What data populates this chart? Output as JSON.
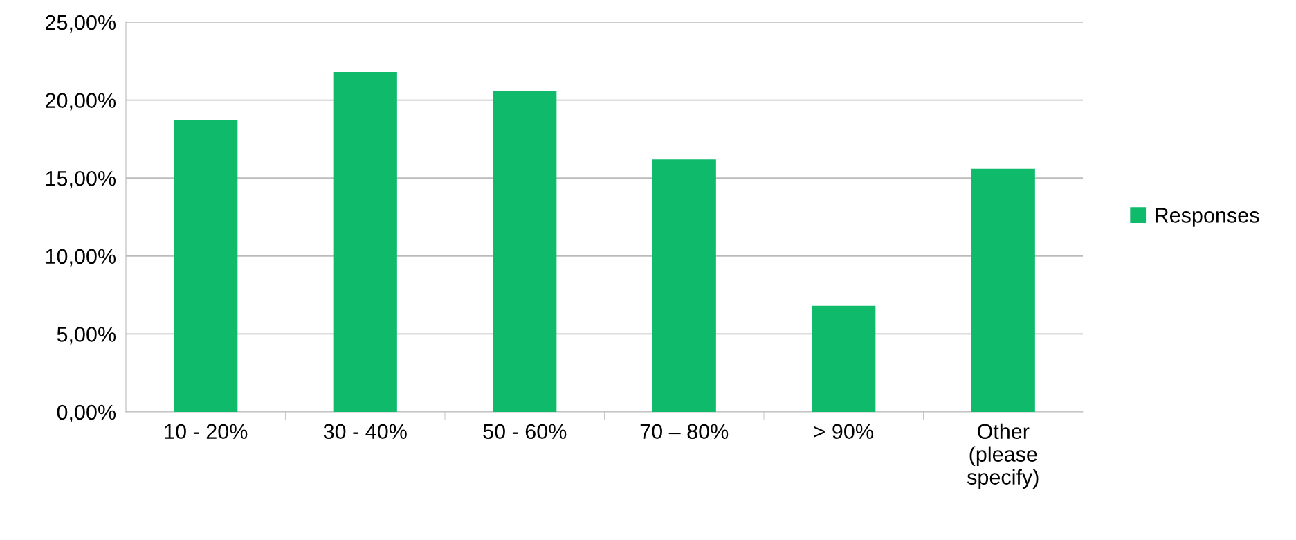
{
  "chart_data": {
    "type": "bar",
    "categories": [
      "10 - 20%",
      "30 - 40%",
      "50 - 60%",
      "70 – 80%",
      "> 90%",
      "Other\n(please\nspecify)"
    ],
    "series": [
      {
        "name": "Responses",
        "color": "#0fba6b",
        "values": [
          18.7,
          21.8,
          20.6,
          16.2,
          6.8,
          15.6
        ]
      }
    ],
    "ylim": [
      0,
      25
    ],
    "yticks": [
      {
        "value": 0,
        "label": "0,00%"
      },
      {
        "value": 5,
        "label": "5,00%"
      },
      {
        "value": 10,
        "label": "10,00%"
      },
      {
        "value": 15,
        "label": "15,00%"
      },
      {
        "value": 20,
        "label": "20,00%"
      },
      {
        "value": 25,
        "label": "25,00%"
      }
    ],
    "grid": "y",
    "legend": "right"
  }
}
